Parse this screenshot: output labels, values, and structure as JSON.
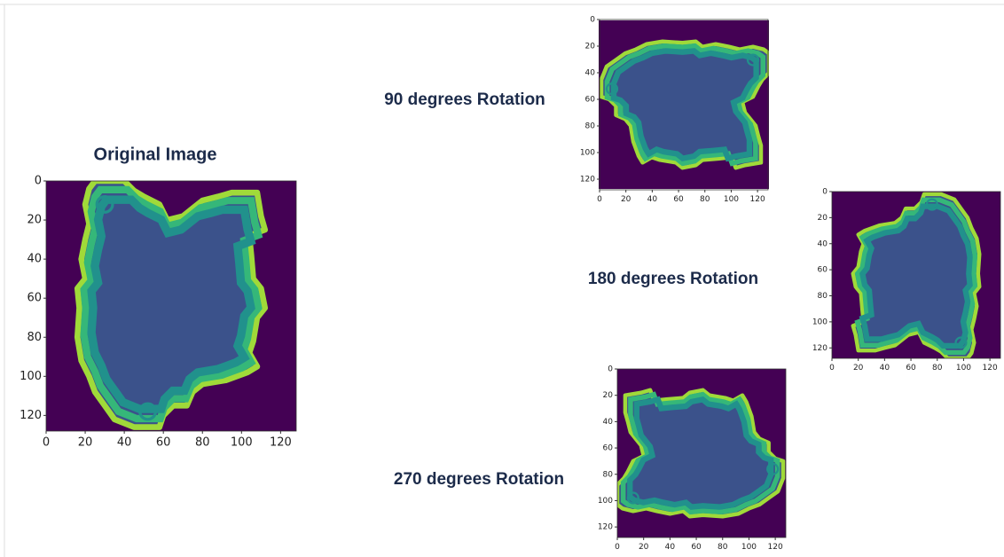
{
  "panels": [
    {
      "title": "Original Image",
      "xlim": [
        0,
        128
      ],
      "ylim": [
        128,
        0
      ],
      "xticks": [
        0,
        20,
        40,
        60,
        80,
        100,
        120
      ],
      "yticks": [
        0,
        20,
        40,
        60,
        80,
        100,
        120
      ]
    },
    {
      "title": "90 degrees Rotation",
      "xlim": [
        0,
        128
      ],
      "ylim": [
        128,
        0
      ],
      "xticks": [
        0,
        20,
        40,
        60,
        80,
        100,
        120
      ],
      "yticks": [
        0,
        20,
        40,
        60,
        80,
        100,
        120
      ]
    },
    {
      "title": "180 degrees Rotation",
      "xlim": [
        0,
        128
      ],
      "ylim": [
        128,
        0
      ],
      "xticks": [
        0,
        20,
        40,
        60,
        80,
        100,
        120
      ],
      "yticks": [
        0,
        20,
        40,
        60,
        80,
        100,
        120
      ]
    },
    {
      "title": "270 degrees Rotation",
      "xlim": [
        0,
        128
      ],
      "ylim": [
        128,
        0
      ],
      "xticks": [
        0,
        20,
        40,
        60,
        80,
        100,
        120
      ],
      "yticks": [
        0,
        20,
        40,
        60,
        80,
        100,
        120
      ]
    }
  ]
}
